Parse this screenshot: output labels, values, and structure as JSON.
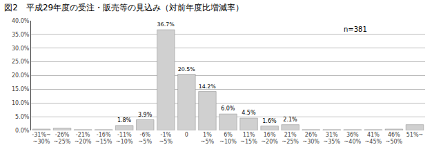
{
  "chart_data": {
    "type": "bar",
    "title": "図2　平成29年度の受注・販売等の見込み（対前年度比増減率）",
    "categories": [
      "-31%~\n~30%",
      "-26%\n~25%",
      "-21%\n~20%",
      "-16%\n~15%",
      "-11%\n~10%",
      "-6%\n~5%",
      "-1%\n~5%",
      "0",
      "1%\n~5%",
      "6%\n~10%",
      "11%\n~15%",
      "16%\n~20%",
      "21%\n~25%",
      "26%\n~30%",
      "31%\n~35%",
      "36%\n~40%",
      "41%\n~45%",
      "46%\n~50%",
      "51%~"
    ],
    "values": [
      0.5,
      0.8,
      0.3,
      0.3,
      1.8,
      3.9,
      36.7,
      20.5,
      14.2,
      6.0,
      4.5,
      1.6,
      2.1,
      0.3,
      0.3,
      0.3,
      0.3,
      0.5,
      2.1
    ],
    "value_labels": [
      null,
      null,
      null,
      null,
      "1.8%",
      "3.9%",
      "36.7%",
      "20.5%",
      "14.2%",
      "6.0%",
      "4.5%",
      "1.6%",
      "2.1%",
      null,
      null,
      null,
      null,
      null,
      null
    ],
    "color": "#d0d0d0",
    "ylim": [
      0,
      40
    ],
    "yticks": [
      {
        "value": 0,
        "label": "0.0%"
      },
      {
        "value": 5,
        "label": "5.0%"
      },
      {
        "value": 10,
        "label": "10.0%"
      },
      {
        "value": 15,
        "label": "15.0%"
      },
      {
        "value": 20,
        "label": "20.0%"
      },
      {
        "value": 25,
        "label": "25.0%"
      },
      {
        "value": 30,
        "label": "30.0%"
      },
      {
        "value": 35,
        "label": "35.0%"
      },
      {
        "value": 40,
        "label": "40.0%"
      }
    ],
    "grid": true,
    "annotations": [
      "n=381"
    ]
  }
}
